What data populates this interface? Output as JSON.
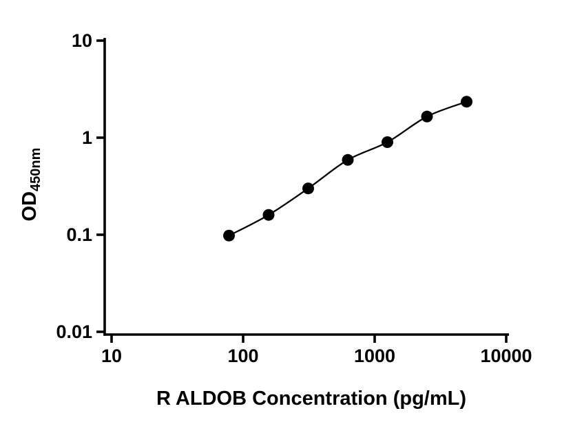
{
  "chart_data": {
    "type": "line",
    "title": "",
    "xlabel": "R ALDOB Concentration (pg/mL)",
    "ylabel_main": "OD",
    "ylabel_sub": "450nm",
    "x": [
      78.1,
      156.2,
      312.5,
      625,
      1250,
      2500,
      5000
    ],
    "y": [
      0.098,
      0.16,
      0.3,
      0.59,
      0.9,
      1.65,
      2.35
    ],
    "xscale": "log",
    "yscale": "log",
    "xlim": [
      10,
      10000
    ],
    "ylim": [
      0.01,
      10
    ],
    "x_tick_values": [
      10,
      100,
      1000,
      10000
    ],
    "x_tick_labels": [
      "10",
      "100",
      "1000",
      "10000"
    ],
    "y_tick_values": [
      0.01,
      0.1,
      1,
      10
    ],
    "y_tick_labels": [
      "0.01",
      "0.1",
      "1",
      "10"
    ],
    "grid": false,
    "legend": "none",
    "line_color": "#000000",
    "marker_color": "#000000",
    "marker_shape": "circle"
  }
}
